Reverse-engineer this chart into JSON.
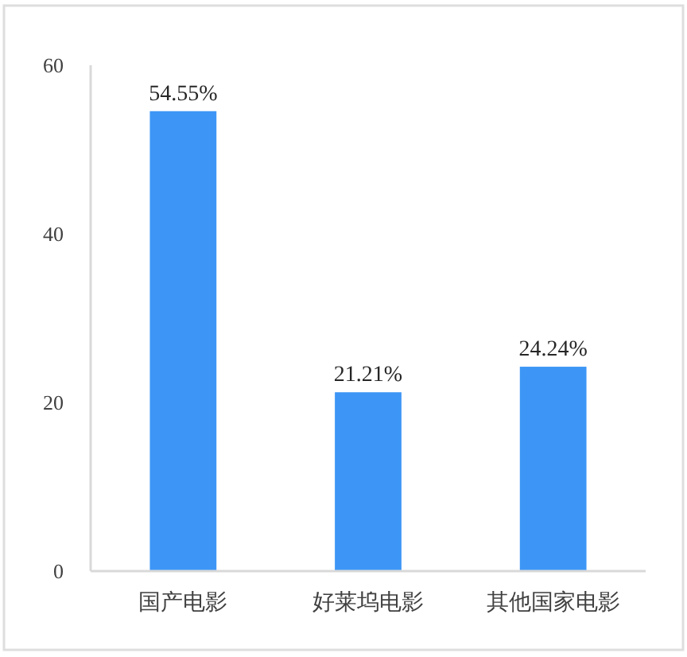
{
  "chart_data": {
    "type": "bar",
    "categories": [
      "国产电影",
      "好莱坞电影",
      "其他国家电影"
    ],
    "values": [
      54.55,
      21.21,
      24.24
    ],
    "value_labels": [
      "54.55%",
      "21.21%",
      "24.24%"
    ],
    "color": "#3d96f6",
    "ylim": [
      0,
      60
    ],
    "yticks": [
      0,
      20,
      40,
      60
    ]
  }
}
